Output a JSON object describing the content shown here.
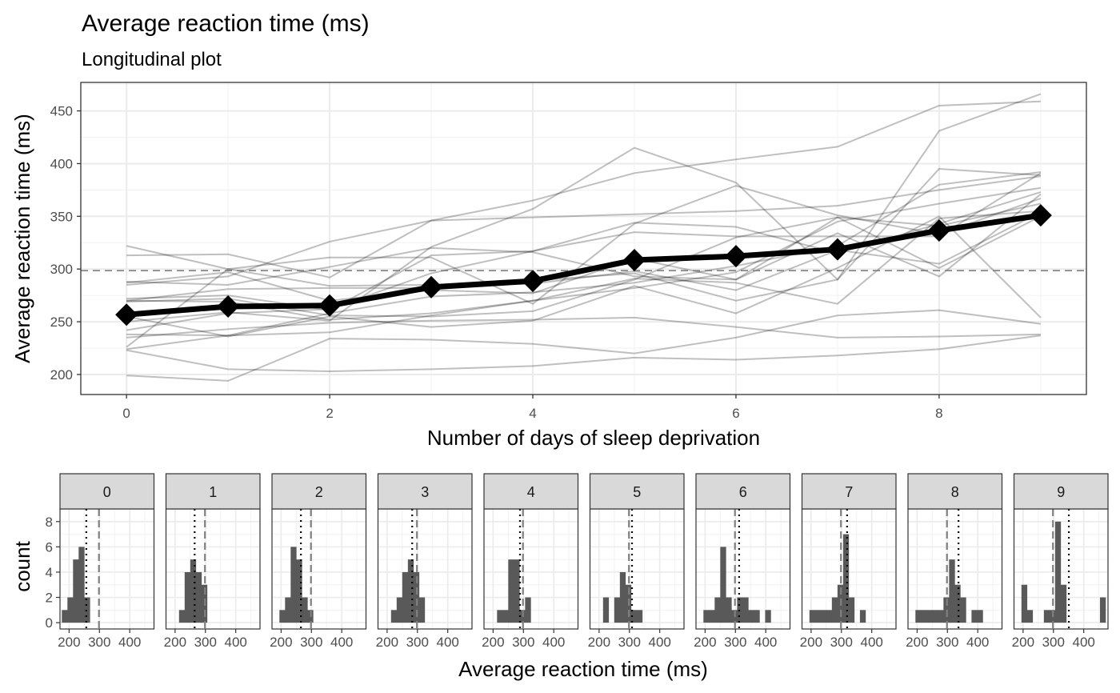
{
  "title": "Average reaction time (ms)",
  "subtitle": "Longitudinal plot",
  "chart_data": [
    {
      "type": "line",
      "xlabel": "Number of days of sleep deprivation",
      "ylabel": "Average reaction time (ms)",
      "x": [
        0,
        1,
        2,
        3,
        4,
        5,
        6,
        7,
        8,
        9
      ],
      "xticks": [
        0,
        2,
        4,
        6,
        8
      ],
      "yticks": [
        200,
        250,
        300,
        350,
        400,
        450
      ],
      "xlim": [
        -0.45,
        9.45
      ],
      "ylim": [
        181,
        477
      ],
      "grid": true,
      "reference_line": 298.5,
      "mean_series": {
        "values": [
          256.7,
          264.5,
          265.4,
          282.8,
          288.7,
          308.5,
          312.2,
          318.7,
          336.6,
          350.9
        ]
      },
      "subjects": [
        [
          250,
          259,
          251,
          321,
          357,
          415,
          382,
          290,
          431,
          466
        ],
        [
          223,
          205,
          203,
          205,
          208,
          216,
          214,
          218,
          224,
          237
        ],
        [
          199,
          194,
          234,
          233,
          229,
          220,
          235,
          256,
          261,
          248
        ],
        [
          322,
          300,
          284,
          285,
          286,
          298,
          280,
          318,
          305,
          354
        ],
        [
          288,
          285,
          302,
          320,
          316,
          293,
          290,
          334,
          293,
          371
        ],
        [
          235,
          243,
          249,
          251,
          252,
          254,
          245,
          235,
          236,
          238
        ],
        [
          313,
          314,
          292,
          346,
          349,
          352,
          355,
          360,
          375,
          388
        ],
        [
          238,
          237,
          240,
          256,
          270,
          282,
          297,
          345,
          362,
          377
        ],
        [
          287,
          297,
          270,
          280,
          277,
          310,
          290,
          349,
          301,
          350
        ],
        [
          269,
          272,
          256,
          255,
          260,
          290,
          330,
          349,
          341,
          362
        ],
        [
          285,
          293,
          326,
          346,
          365,
          391,
          404,
          416,
          455,
          459
        ],
        [
          226,
          300,
          311,
          311,
          267,
          343,
          379,
          351,
          333,
          367
        ],
        [
          242,
          258,
          262,
          296,
          317,
          344,
          340,
          315,
          343,
          373
        ],
        [
          272,
          275,
          261,
          313,
          317,
          335,
          331,
          331,
          331,
          391
        ],
        [
          224,
          237,
          258,
          274,
          278,
          287,
          303,
          322,
          380,
          392
        ],
        [
          270,
          269,
          252,
          258,
          270,
          291,
          287,
          267,
          348,
          355
        ],
        [
          255,
          236,
          255,
          245,
          251,
          284,
          258,
          301,
          350,
          254
        ],
        [
          270,
          281,
          282,
          282,
          289,
          296,
          270,
          290,
          395,
          389
        ]
      ]
    },
    {
      "type": "histogram",
      "facet_by": "Number of days of sleep deprivation",
      "xlabel": "Average reaction time (ms)",
      "ylabel": "count",
      "xticks": [
        200,
        300,
        400
      ],
      "xlim": [
        170,
        480
      ],
      "yticks": [
        0,
        2,
        4,
        6,
        8
      ],
      "ylim": [
        -0.5,
        9
      ],
      "bin_width": 18.5,
      "bin_start": 176,
      "grid": true,
      "panels": [
        {
          "label": "0",
          "mean": 256.7,
          "grand_mean": 298.5,
          "counts": [
            1,
            2,
            5,
            6,
            2,
            0,
            0,
            0,
            0,
            0,
            0,
            0,
            0,
            0,
            0,
            0
          ]
        },
        {
          "label": "1",
          "mean": 264.5,
          "grand_mean": 298.5,
          "counts": [
            0,
            0,
            1,
            4,
            5,
            4,
            3,
            0,
            0,
            0,
            0,
            0,
            0,
            0,
            0,
            0
          ]
        },
        {
          "label": "2",
          "mean": 265.4,
          "grand_mean": 298.5,
          "counts": [
            0,
            1,
            2,
            6,
            5,
            2,
            1,
            0,
            0,
            0,
            0,
            0,
            0,
            0,
            0,
            0
          ]
        },
        {
          "label": "3",
          "mean": 282.8,
          "grand_mean": 298.5,
          "counts": [
            0,
            0,
            1,
            2,
            4,
            5,
            4,
            2,
            0,
            0,
            0,
            0,
            0,
            0,
            0,
            0
          ]
        },
        {
          "label": "4",
          "mean": 288.7,
          "grand_mean": 298.5,
          "counts": [
            0,
            0,
            1,
            1,
            5,
            5,
            1,
            2,
            0,
            0,
            0,
            0,
            0,
            0,
            0,
            0
          ]
        },
        {
          "label": "5",
          "mean": 308.5,
          "grand_mean": 298.5,
          "counts": [
            0,
            0,
            2,
            0,
            2,
            4,
            3,
            1,
            1,
            0,
            0,
            0,
            0,
            0,
            0,
            0
          ]
        },
        {
          "label": "6",
          "mean": 312.2,
          "grand_mean": 298.5,
          "counts": [
            0,
            1,
            1,
            2,
            6,
            2,
            1,
            2,
            2,
            1,
            1,
            0,
            1,
            0,
            0,
            0
          ]
        },
        {
          "label": "7",
          "mean": 318.7,
          "grand_mean": 298.5,
          "counts": [
            0,
            1,
            1,
            1,
            1,
            2,
            3,
            7,
            2,
            0,
            1,
            0,
            0,
            0,
            0,
            0
          ]
        },
        {
          "label": "8",
          "mean": 336.6,
          "grand_mean": 298.5,
          "counts": [
            0,
            1,
            1,
            1,
            1,
            1,
            2,
            5,
            3,
            2,
            0,
            1,
            1,
            0,
            0,
            0
          ]
        },
        {
          "label": "9",
          "mean": 350.9,
          "grand_mean": 298.5,
          "counts": [
            0,
            3,
            1,
            0,
            0,
            1,
            1,
            8,
            3,
            0,
            0,
            0,
            0,
            0,
            0,
            2
          ]
        }
      ]
    }
  ]
}
